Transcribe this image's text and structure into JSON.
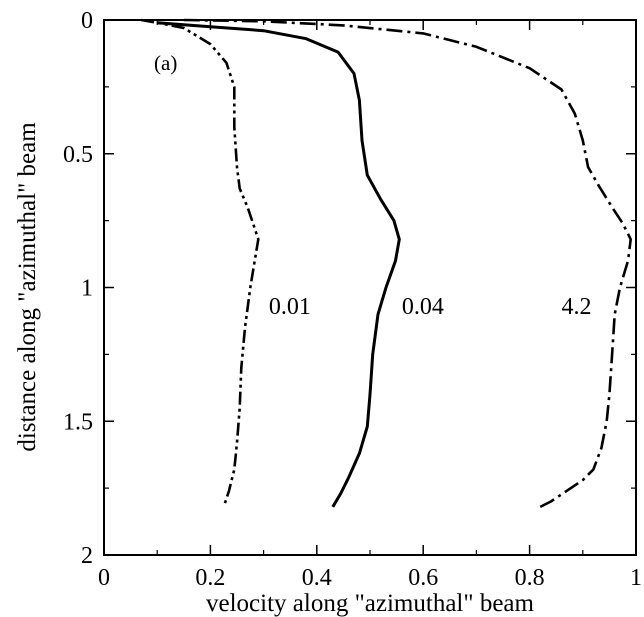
{
  "chart_data": {
    "type": "line",
    "panel_label": "(a)",
    "xlabel": "velocity along \"azimuthal\" beam",
    "ylabel": "distance along \"azimuthal\" beam",
    "xlim": [
      0,
      1
    ],
    "ylim": [
      2,
      0
    ],
    "y_inverted": true,
    "grid": false,
    "legend": "none",
    "x_ticks": [
      {
        "value": 0,
        "label": "0"
      },
      {
        "value": 0.2,
        "label": "0.2"
      },
      {
        "value": 0.4,
        "label": "0.4"
      },
      {
        "value": 0.6,
        "label": "0.6"
      },
      {
        "value": 0.8,
        "label": "0.8"
      },
      {
        "value": 1,
        "label": "1"
      }
    ],
    "y_ticks": [
      {
        "value": 0,
        "label": "0"
      },
      {
        "value": 0.5,
        "label": "0.5"
      },
      {
        "value": 1,
        "label": "1"
      },
      {
        "value": 1.5,
        "label": "1.5"
      },
      {
        "value": 2,
        "label": "2"
      }
    ],
    "series": [
      {
        "name": "0.01",
        "dash": "dash-dot-dot",
        "color": "#000000",
        "label_at": [
          0.31,
          1.07
        ],
        "points": [
          [
            0.07,
            0
          ],
          [
            0.1,
            0.01
          ],
          [
            0.15,
            0.03
          ],
          [
            0.2,
            0.09
          ],
          [
            0.23,
            0.16
          ],
          [
            0.245,
            0.25
          ],
          [
            0.245,
            0.4
          ],
          [
            0.25,
            0.55
          ],
          [
            0.255,
            0.63
          ],
          [
            0.27,
            0.7
          ],
          [
            0.28,
            0.76
          ],
          [
            0.29,
            0.82
          ],
          [
            0.285,
            0.88
          ],
          [
            0.275,
            1.0
          ],
          [
            0.265,
            1.15
          ],
          [
            0.258,
            1.3
          ],
          [
            0.255,
            1.45
          ],
          [
            0.25,
            1.58
          ],
          [
            0.245,
            1.68
          ],
          [
            0.235,
            1.76
          ],
          [
            0.225,
            1.82
          ]
        ]
      },
      {
        "name": "0.04",
        "dash": "solid",
        "color": "#000000",
        "label_at": [
          0.56,
          1.07
        ],
        "points": [
          [
            0.1,
            0.01
          ],
          [
            0.2,
            0.025
          ],
          [
            0.3,
            0.04
          ],
          [
            0.38,
            0.07
          ],
          [
            0.44,
            0.12
          ],
          [
            0.47,
            0.2
          ],
          [
            0.48,
            0.3
          ],
          [
            0.485,
            0.45
          ],
          [
            0.495,
            0.58
          ],
          [
            0.52,
            0.67
          ],
          [
            0.545,
            0.75
          ],
          [
            0.555,
            0.82
          ],
          [
            0.548,
            0.9
          ],
          [
            0.53,
            1.0
          ],
          [
            0.515,
            1.1
          ],
          [
            0.505,
            1.25
          ],
          [
            0.5,
            1.4
          ],
          [
            0.495,
            1.52
          ],
          [
            0.48,
            1.62
          ],
          [
            0.46,
            1.71
          ],
          [
            0.445,
            1.77
          ],
          [
            0.43,
            1.82
          ]
        ]
      },
      {
        "name": "4.2",
        "dash": "dash-dot",
        "color": "#000000",
        "label_at": [
          0.86,
          1.07
        ],
        "points": [
          [
            0.15,
            0
          ],
          [
            0.3,
            0.005
          ],
          [
            0.45,
            0.02
          ],
          [
            0.6,
            0.05
          ],
          [
            0.7,
            0.1
          ],
          [
            0.8,
            0.18
          ],
          [
            0.86,
            0.26
          ],
          [
            0.885,
            0.35
          ],
          [
            0.9,
            0.45
          ],
          [
            0.91,
            0.55
          ],
          [
            0.93,
            0.62
          ],
          [
            0.955,
            0.7
          ],
          [
            0.975,
            0.76
          ],
          [
            0.99,
            0.82
          ],
          [
            0.985,
            0.9
          ],
          [
            0.97,
            1.0
          ],
          [
            0.96,
            1.1
          ],
          [
            0.955,
            1.25
          ],
          [
            0.95,
            1.4
          ],
          [
            0.945,
            1.5
          ],
          [
            0.935,
            1.6
          ],
          [
            0.92,
            1.68
          ],
          [
            0.9,
            1.72
          ],
          [
            0.87,
            1.76
          ],
          [
            0.84,
            1.8
          ],
          [
            0.82,
            1.82
          ]
        ]
      }
    ]
  }
}
